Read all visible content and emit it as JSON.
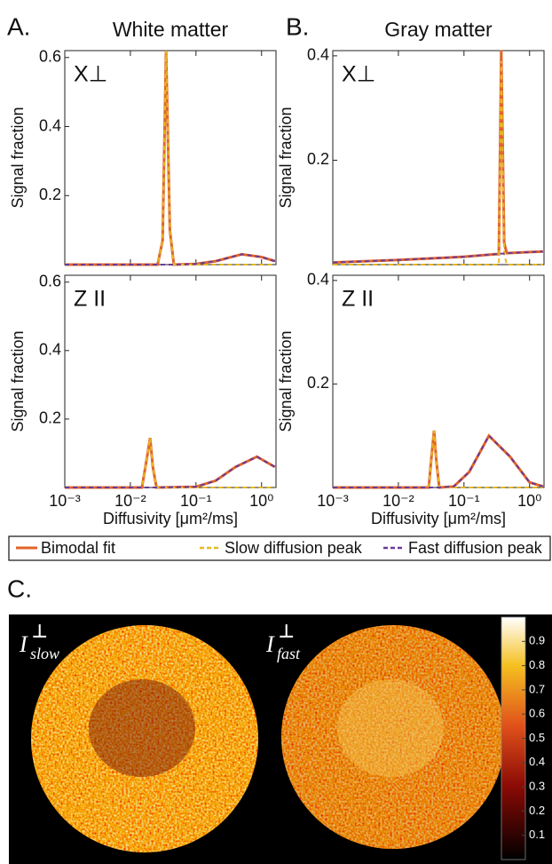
{
  "panels": [
    "A.",
    "B.",
    "C."
  ],
  "chart_data": [
    {
      "type": "line",
      "title": "White matter",
      "label": "X⊥",
      "ylabel": "Signal fraction",
      "xscale": "log",
      "x": [
        0.001,
        0.01,
        0.026,
        0.031,
        0.035,
        0.04,
        0.046,
        0.1,
        0.2,
        0.5,
        1,
        1.6
      ],
      "series": [
        {
          "name": "Bimodal fit",
          "color": "#e0652a",
          "dashed": false,
          "values": [
            0,
            0,
            0,
            0.07,
            0.62,
            0.1,
            0,
            0.002,
            0.01,
            0.03,
            0.022,
            0.01
          ]
        },
        {
          "name": "Slow diffusion peak",
          "color": "#e8b820",
          "dashed": true,
          "values": [
            0,
            0,
            0,
            0.07,
            0.62,
            0.1,
            0,
            0,
            0,
            0,
            0,
            0
          ]
        },
        {
          "name": "Fast diffusion peak",
          "color": "#6a3a9a",
          "dashed": true,
          "values": [
            0,
            0,
            0,
            0,
            0,
            0,
            0,
            0.002,
            0.01,
            0.03,
            0.022,
            0.01
          ]
        }
      ],
      "xlim": [
        0.001,
        1.66
      ],
      "ylim": [
        0,
        0.62
      ],
      "xticks": [
        {
          "value": 0.001,
          "label": "10⁻³"
        },
        {
          "value": 0.01,
          "label": "10⁻²"
        },
        {
          "value": 0.1,
          "label": "10⁻¹"
        },
        {
          "value": 1,
          "label": "10⁰"
        }
      ],
      "yticks": [
        0.2,
        0.4,
        0.6
      ]
    },
    {
      "type": "line",
      "title": "Gray matter",
      "label": "X⊥",
      "ylabel": "Signal fraction",
      "xscale": "log",
      "x": [
        0.001,
        0.01,
        0.1,
        0.3,
        0.34,
        0.37,
        0.41,
        0.45,
        1,
        1.6
      ],
      "series": [
        {
          "color": "#e0652a",
          "dashed": false,
          "values": [
            0.004,
            0.009,
            0.015,
            0.02,
            0.02,
            0.411,
            0.041,
            0.022,
            0.024,
            0.025
          ]
        },
        {
          "color": "#e8b820",
          "dashed": true,
          "values": [
            0,
            0,
            0,
            0,
            0,
            0.39,
            0.02,
            0,
            0,
            0
          ]
        },
        {
          "color": "#6a3a9a",
          "dashed": true,
          "values": [
            0.004,
            0.009,
            0.015,
            0.02,
            0.02,
            0.021,
            0.021,
            0.022,
            0.024,
            0.025
          ]
        }
      ],
      "xlim": [
        0.001,
        1.66
      ],
      "ylim": [
        0,
        0.41
      ],
      "xticks": [
        {
          "value": 0.001,
          "label": "10⁻³"
        },
        {
          "value": 0.01,
          "label": "10⁻²"
        },
        {
          "value": 0.1,
          "label": "10⁻¹"
        },
        {
          "value": 1,
          "label": "10⁰"
        }
      ],
      "yticks": [
        0.2,
        0.4
      ]
    },
    {
      "type": "line",
      "label": "Z II",
      "ylabel": "Signal fraction",
      "xlabel": "Diffusivity [μm²/ms]",
      "xscale": "log",
      "x": [
        0.001,
        0.01,
        0.015,
        0.018,
        0.02,
        0.022,
        0.025,
        0.1,
        0.2,
        0.4,
        0.85,
        1.6
      ],
      "series": [
        {
          "color": "#e0652a",
          "dashed": false,
          "values": [
            0,
            0,
            0,
            0.09,
            0.145,
            0.06,
            0,
            0.002,
            0.02,
            0.06,
            0.09,
            0.06
          ]
        },
        {
          "color": "#e8b820",
          "dashed": true,
          "values": [
            0,
            0,
            0,
            0.09,
            0.145,
            0.06,
            0,
            0,
            0,
            0,
            0,
            0
          ]
        },
        {
          "color": "#6a3a9a",
          "dashed": true,
          "values": [
            0,
            0,
            0,
            0,
            0,
            0,
            0,
            0.002,
            0.02,
            0.06,
            0.09,
            0.06
          ]
        }
      ],
      "xlim": [
        0.001,
        1.66
      ],
      "ylim": [
        0,
        0.62
      ],
      "xticks": [
        {
          "value": 0.001,
          "label": "10⁻³"
        },
        {
          "value": 0.01,
          "label": "10⁻²"
        },
        {
          "value": 0.1,
          "label": "10⁻¹"
        },
        {
          "value": 1,
          "label": "10⁰"
        }
      ],
      "yticks": [
        0.2,
        0.4,
        0.6
      ]
    },
    {
      "type": "line",
      "label": "Z II",
      "ylabel": "Signal fraction",
      "xlabel": "Diffusivity [μm²/ms]",
      "xscale": "log",
      "x": [
        0.001,
        0.01,
        0.029,
        0.032,
        0.035,
        0.038,
        0.042,
        0.07,
        0.12,
        0.24,
        0.5,
        1,
        1.6
      ],
      "series": [
        {
          "color": "#e0652a",
          "dashed": false,
          "values": [
            0,
            0,
            0,
            0.06,
            0.11,
            0.05,
            0,
            0.002,
            0.03,
            0.1,
            0.06,
            0.01,
            0.002
          ]
        },
        {
          "color": "#e8b820",
          "dashed": true,
          "values": [
            0,
            0,
            0,
            0.06,
            0.11,
            0.05,
            0,
            0,
            0,
            0,
            0,
            0,
            0
          ]
        },
        {
          "color": "#6a3a9a",
          "dashed": true,
          "values": [
            0,
            0,
            0,
            0,
            0,
            0,
            0,
            0.002,
            0.03,
            0.1,
            0.06,
            0.01,
            0.002
          ]
        }
      ],
      "xlim": [
        0.001,
        1.66
      ],
      "ylim": [
        0,
        0.41
      ],
      "xticks": [
        {
          "value": 0.001,
          "label": "10⁻³"
        },
        {
          "value": 0.01,
          "label": "10⁻²"
        },
        {
          "value": 0.1,
          "label": "10⁻¹"
        },
        {
          "value": 1,
          "label": "10⁰"
        }
      ],
      "yticks": [
        0.2,
        0.4
      ]
    }
  ],
  "maps": {
    "labels": [
      {
        "main": "I",
        "sup": "⊥",
        "sub": "slow"
      },
      {
        "main": "I",
        "sup": "⊥",
        "sub": "fast"
      }
    ],
    "colorbar": {
      "lim": [
        0,
        1
      ],
      "ticks": [
        0.1,
        0.2,
        0.3,
        0.4,
        0.5,
        0.6,
        0.7,
        0.8,
        0.9
      ]
    }
  }
}
